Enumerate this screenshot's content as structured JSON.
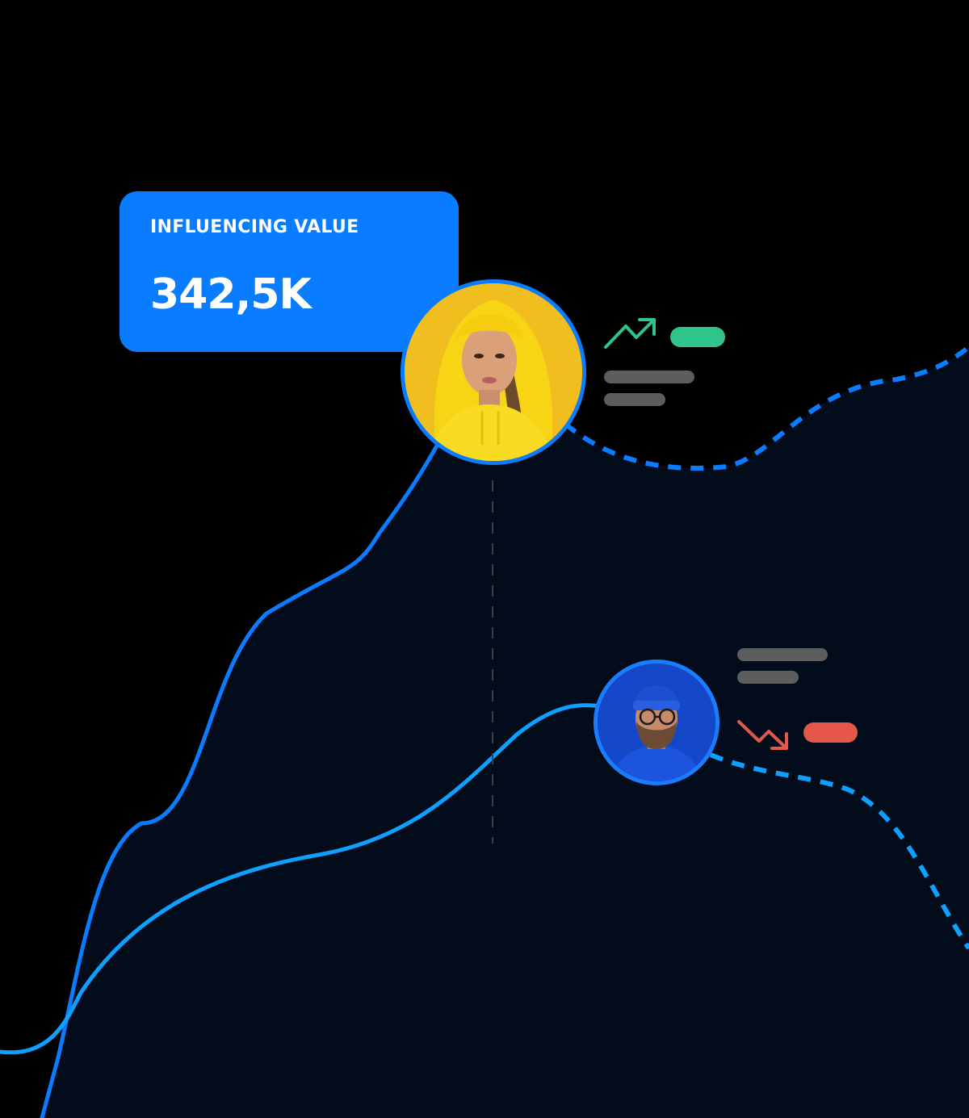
{
  "card": {
    "label": "INFLUENCING VALUE",
    "value": "342,5K"
  },
  "colors": {
    "background": "#000000",
    "panel": "#030c1a",
    "accent": "#0a7cff",
    "secondary_line": "#0ea0ff",
    "positive": "#2fc58a",
    "negative": "#e5574a",
    "placeholder_bar": "#5d5d60"
  },
  "icons": {
    "up_trend": "trend-up-arrow",
    "down_trend": "trend-down-arrow"
  },
  "avatars": {
    "woman": "portrait-woman-yellow-hoodie",
    "man": "portrait-man-blue-beanie-glasses"
  }
}
